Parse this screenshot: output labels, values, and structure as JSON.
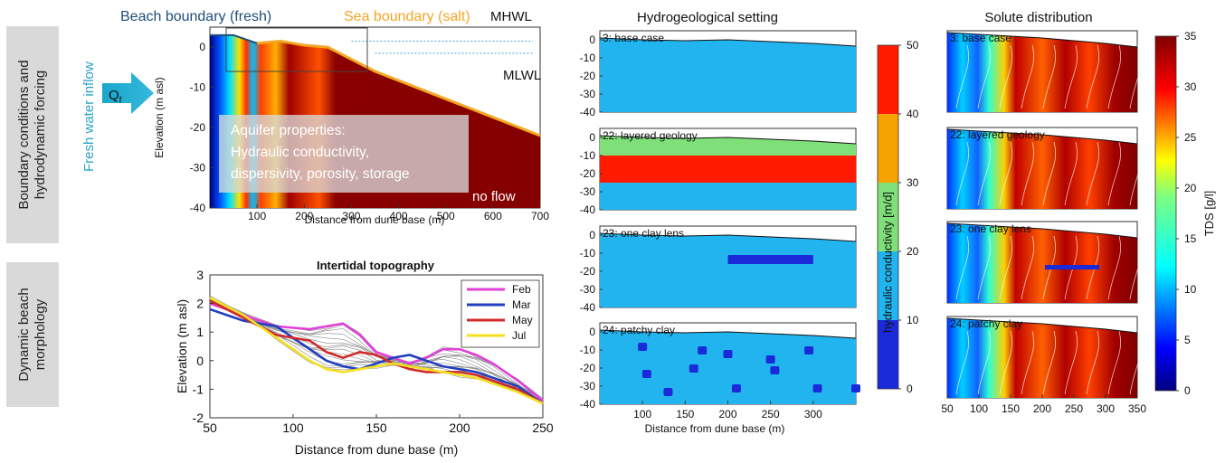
{
  "side_labels": {
    "row1": [
      "Boundary conditions and",
      "hydrodynamic forcing"
    ],
    "row2": [
      "Dynamic beach",
      "morphology"
    ]
  },
  "forcing": {
    "inflow_label": "Fresh water inflow",
    "qf_label": "Q",
    "qf_sub": "f",
    "beach_boundary": "Beach boundary (fresh)",
    "sea_boundary": "Sea boundary (salt)",
    "mhwl": "MHWL",
    "mlwl": "MLWL",
    "aquifer_lines": [
      "Aquifer properties:",
      "Hydraulic conductivity,",
      "dispersivity, porosity, storage"
    ],
    "no_flow": "no flow"
  },
  "colors": {
    "fresh": "#1f4e79",
    "salt": "#f5a623",
    "inflow": "#29a3c8",
    "base_conductivity": "#22b4ee",
    "high_conductivity": "#ff1a00",
    "mid_conductivity": "#7fe07a",
    "clay": "#1a2ad8"
  },
  "chart_data": [
    {
      "type": "heatmap",
      "title": "",
      "xlabel": "Distance from dune base (m)",
      "ylabel": "Elevation (m asl)",
      "xlim": [
        0,
        700
      ],
      "ylim": [
        -40,
        5
      ],
      "xticks": [
        100,
        200,
        300,
        400,
        500,
        600,
        700
      ],
      "yticks": [
        0,
        -10,
        -20,
        -30,
        -40
      ],
      "surface": {
        "x": [
          0,
          50,
          100,
          150,
          200,
          250,
          300,
          350,
          700
        ],
        "y": [
          3,
          3,
          1,
          1.5,
          0.5,
          0,
          -3,
          -6,
          -22
        ]
      },
      "mhwl": 1.5,
      "mlwl": -1.5
    },
    {
      "type": "line",
      "title": "Intertidal topography",
      "xlabel": "Distance from dune base (m)",
      "ylabel": "Elevation (m asl)",
      "xlim": [
        50,
        250
      ],
      "ylim": [
        -2,
        3
      ],
      "xticks": [
        50,
        100,
        150,
        200,
        250
      ],
      "yticks": [
        3,
        2,
        1,
        0,
        -1,
        -2
      ],
      "legend": "top-right",
      "series": [
        {
          "name": "Feb",
          "color": "#e040d8",
          "x": [
            50,
            70,
            90,
            110,
            120,
            130,
            140,
            150,
            160,
            170,
            180,
            190,
            200,
            210,
            220,
            235,
            250
          ],
          "y": [
            2.0,
            1.6,
            1.2,
            1.1,
            1.2,
            1.3,
            0.9,
            0.3,
            0.1,
            -0.1,
            0.1,
            0.4,
            0.4,
            0.2,
            -0.1,
            -0.7,
            -1.4
          ]
        },
        {
          "name": "Mar",
          "color": "#1f3fbf",
          "x": [
            50,
            70,
            90,
            110,
            120,
            130,
            140,
            150,
            160,
            170,
            180,
            190,
            200,
            210,
            220,
            235,
            250
          ],
          "y": [
            1.8,
            1.4,
            1.2,
            0.4,
            0.0,
            -0.2,
            -0.3,
            -0.1,
            0.1,
            0.2,
            0.0,
            -0.2,
            -0.3,
            -0.4,
            -0.6,
            -0.9,
            -1.5
          ]
        },
        {
          "name": "May",
          "color": "#d02a2a",
          "x": [
            50,
            70,
            90,
            110,
            120,
            130,
            140,
            150,
            160,
            170,
            180,
            190,
            200,
            210,
            220,
            235,
            250
          ],
          "y": [
            2.1,
            1.5,
            0.9,
            0.7,
            0.3,
            0.1,
            0.3,
            0.2,
            -0.1,
            -0.3,
            -0.4,
            -0.4,
            -0.4,
            -0.5,
            -0.7,
            -1.0,
            -1.5
          ]
        },
        {
          "name": "Jul",
          "color": "#f4e020",
          "x": [
            50,
            70,
            90,
            110,
            120,
            130,
            140,
            150,
            160,
            170,
            180,
            190,
            200,
            210,
            220,
            235,
            250
          ],
          "y": [
            2.2,
            1.6,
            0.8,
            0.0,
            -0.3,
            -0.4,
            -0.3,
            -0.2,
            -0.1,
            -0.2,
            -0.3,
            -0.4,
            -0.5,
            -0.6,
            -0.8,
            -1.1,
            -1.5
          ]
        }
      ]
    },
    {
      "type": "heatmap",
      "title": "Hydrogeological setting",
      "xlabel": "Distance from dune base (m)",
      "ylabel": "",
      "xlim": [
        50,
        350
      ],
      "ylim": [
        -40,
        5
      ],
      "xticks": [
        100,
        150,
        200,
        250,
        300
      ],
      "yticks": [
        0,
        -10,
        -20,
        -30,
        -40
      ],
      "panels": [
        {
          "label": "3: base case",
          "type": "base"
        },
        {
          "label": "22: layered geology",
          "type": "layered"
        },
        {
          "label": "23: one clay lens",
          "type": "lens"
        },
        {
          "label": "24: patchy clay",
          "type": "patchy"
        }
      ],
      "surface": {
        "x": [
          50,
          100,
          150,
          200,
          250,
          300,
          350
        ],
        "y": [
          1,
          0,
          -0.5,
          0,
          -1,
          -2,
          -3.5
        ]
      },
      "layers": [
        [
          -10,
          0,
          "green"
        ],
        [
          -25,
          -10,
          "red"
        ],
        [
          -40,
          -25,
          "blue"
        ]
      ],
      "lens": {
        "x1": 200,
        "x2": 300,
        "y1": -16,
        "y2": -11
      },
      "patches": [
        [
          100,
          -8
        ],
        [
          105,
          -23
        ],
        [
          130,
          -33
        ],
        [
          160,
          -20
        ],
        [
          170,
          -10
        ],
        [
          200,
          -12
        ],
        [
          210,
          -31
        ],
        [
          250,
          -15
        ],
        [
          255,
          -21
        ],
        [
          295,
          -10
        ],
        [
          305,
          -31
        ],
        [
          350,
          -31
        ]
      ],
      "colorbar": {
        "label": "hydraulic conductivity [m/d]",
        "ticks": [
          50,
          40,
          30,
          20,
          10,
          0
        ],
        "min": 0,
        "max": 50
      }
    },
    {
      "type": "heatmap",
      "title": "Solute distribution",
      "xlabel": "",
      "ylabel": "",
      "xlim": [
        50,
        350
      ],
      "ylim": [
        -40,
        5
      ],
      "xticks": [
        50,
        100,
        150,
        200,
        250,
        300,
        350
      ],
      "panels": [
        {
          "label": "3: base case"
        },
        {
          "label": "22: layered geology"
        },
        {
          "label": "23: one clay lens"
        },
        {
          "label": "24: patchy clay"
        }
      ],
      "colorbar": {
        "label": "TDS [g/l]",
        "ticks": [
          35,
          30,
          25,
          20,
          15,
          10,
          5,
          0
        ],
        "min": 0,
        "max": 35
      }
    }
  ]
}
